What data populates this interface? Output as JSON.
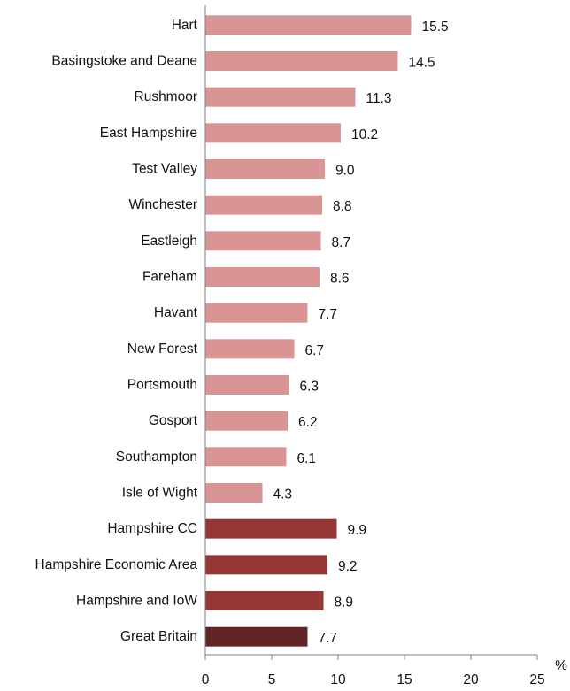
{
  "chart_data": {
    "type": "bar",
    "orientation": "horizontal",
    "categories": [
      "Hart",
      "Basingstoke and Deane",
      "Rushmoor",
      "East Hampshire",
      "Test Valley",
      "Winchester",
      "Eastleigh",
      "Fareham",
      "Havant",
      "New Forest",
      "Portsmouth",
      "Gosport",
      "Southampton",
      "Isle of Wight",
      "Hampshire CC",
      "Hampshire Economic Area",
      "Hampshire and IoW",
      "Great Britain"
    ],
    "values": [
      15.5,
      14.5,
      11.3,
      10.2,
      9.0,
      8.8,
      8.7,
      8.6,
      7.7,
      6.7,
      6.3,
      6.2,
      6.1,
      4.3,
      9.9,
      9.2,
      8.9,
      7.7
    ],
    "value_labels": [
      "15.5",
      "14.5",
      "11.3",
      "10.2",
      "9.0",
      "8.8",
      "8.7",
      "8.6",
      "7.7",
      "6.7",
      "6.3",
      "6.2",
      "6.1",
      "4.3",
      "9.9",
      "9.2",
      "8.9",
      "7.7"
    ],
    "bar_colors": [
      "#d99594",
      "#d99594",
      "#d99594",
      "#d99594",
      "#d99594",
      "#d99594",
      "#d99594",
      "#d99594",
      "#d99594",
      "#d99594",
      "#d99594",
      "#d99594",
      "#d99594",
      "#d99594",
      "#953735",
      "#953735",
      "#953735",
      "#632523"
    ],
    "xlim": [
      0,
      25
    ],
    "xticks": [
      0,
      5,
      10,
      15,
      20,
      25
    ],
    "xtick_labels": [
      "0",
      "5",
      "10",
      "15",
      "20",
      "25"
    ],
    "xlabel": "%",
    "title": "",
    "grid": false
  }
}
